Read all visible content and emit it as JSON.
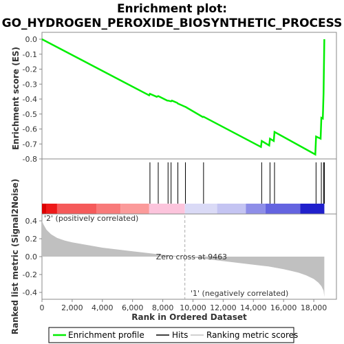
{
  "chart_data": {
    "type": "line",
    "title_line1": "Enrichment plot:",
    "title_line2": "GO_HYDROGEN_PEROXIDE_BIOSYNTHETIC_PROCESS",
    "es_panel": {
      "ylabel": "Enrichment score (ES)",
      "ylim": [
        -0.8,
        0.0
      ],
      "yticks": [
        0.0,
        -0.1,
        -0.2,
        -0.3,
        -0.4,
        -0.5,
        -0.6,
        -0.7,
        -0.8
      ],
      "ytick_labels": [
        "0.0",
        "-0.1",
        "-0.2",
        "-0.3",
        "-0.4",
        "-0.5",
        "-0.6",
        "-0.7",
        "-0.8"
      ],
      "series_name": "Enrichment profile",
      "color": "#00ee00",
      "x": [
        0,
        7100,
        7150,
        7600,
        7700,
        8300,
        8350,
        8550,
        8600,
        8950,
        9000,
        9450,
        9500,
        10650,
        10700,
        14500,
        14550,
        15050,
        15100,
        15350,
        15400,
        18100,
        18150,
        18450,
        18500,
        18600,
        18650,
        18700
      ],
      "y": [
        0.0,
        -0.375,
        -0.365,
        -0.385,
        -0.38,
        -0.41,
        -0.41,
        -0.415,
        -0.41,
        -0.425,
        -0.43,
        -0.45,
        -0.452,
        -0.52,
        -0.518,
        -0.72,
        -0.68,
        -0.71,
        -0.665,
        -0.68,
        -0.62,
        -0.77,
        -0.65,
        -0.665,
        -0.525,
        -0.53,
        -0.36,
        0.0
      ]
    },
    "hits": {
      "series_name": "Hits",
      "positions": [
        7150,
        7700,
        8350,
        8550,
        9000,
        9500,
        10700,
        14550,
        15100,
        15400,
        18150,
        18500,
        18650,
        18700
      ]
    },
    "heatmap_bar": {
      "segments": [
        {
          "from": 0,
          "to": 300,
          "color": "#dd0000"
        },
        {
          "from": 300,
          "to": 1000,
          "color": "#ee1818"
        },
        {
          "from": 1000,
          "to": 3600,
          "color": "#f55a5a"
        },
        {
          "from": 3600,
          "to": 5200,
          "color": "#f87a7a"
        },
        {
          "from": 5200,
          "to": 7100,
          "color": "#fb9a9a"
        },
        {
          "from": 7100,
          "to": 9463,
          "color": "#fcc4dc"
        },
        {
          "from": 9463,
          "to": 11600,
          "color": "#dadaf6"
        },
        {
          "from": 11600,
          "to": 13500,
          "color": "#c4c4f2"
        },
        {
          "from": 13500,
          "to": 14800,
          "color": "#8e8ee8"
        },
        {
          "from": 14800,
          "to": 17100,
          "color": "#6464e0"
        },
        {
          "from": 17100,
          "to": 18700,
          "color": "#2020cc"
        }
      ]
    },
    "metric_panel": {
      "ylabel": "Ranked list metric (Signal2Noise)",
      "xlabel": "Rank in Ordered Dataset",
      "ylim": [
        -0.45,
        0.45
      ],
      "yticks": [
        0.4,
        0.2,
        0.0,
        -0.2,
        -0.4
      ],
      "ytick_labels": [
        "0.4",
        "0.2",
        "0.0",
        "-0.2",
        "-0.4"
      ],
      "series_name": "Ranking metric scores",
      "color": "#c0c0c0",
      "x": [
        0,
        100,
        300,
        600,
        1000,
        1500,
        2000,
        3000,
        4000,
        5000,
        6000,
        7000,
        8000,
        9463,
        10000,
        11000,
        12000,
        13000,
        14000,
        15000,
        16000,
        16500,
        17000,
        17500,
        18000,
        18300,
        18500,
        18650,
        18700
      ],
      "y": [
        0.4,
        0.36,
        0.3,
        0.25,
        0.21,
        0.18,
        0.16,
        0.13,
        0.1,
        0.08,
        0.06,
        0.04,
        0.02,
        0.0,
        -0.01,
        -0.03,
        -0.05,
        -0.07,
        -0.09,
        -0.11,
        -0.14,
        -0.16,
        -0.18,
        -0.21,
        -0.25,
        -0.29,
        -0.33,
        -0.38,
        -0.45
      ]
    },
    "xlim": [
      0,
      19500
    ],
    "xticks": [
      0,
      2000,
      4000,
      6000,
      8000,
      10000,
      12000,
      14000,
      16000,
      18000
    ],
    "xtick_labels": [
      "0",
      "2,000",
      "4,000",
      "6,000",
      "8,000",
      "10,000",
      "12,000",
      "14,000",
      "16,000",
      "18,000"
    ],
    "zero_cross": 9463,
    "zero_cross_text": "Zero cross at 9463",
    "pos_label": "'2' (positively correlated)",
    "neg_label": "'1' (negatively correlated)",
    "pos_label_color": "#dd0000",
    "neg_label_color": "#2222cc"
  }
}
